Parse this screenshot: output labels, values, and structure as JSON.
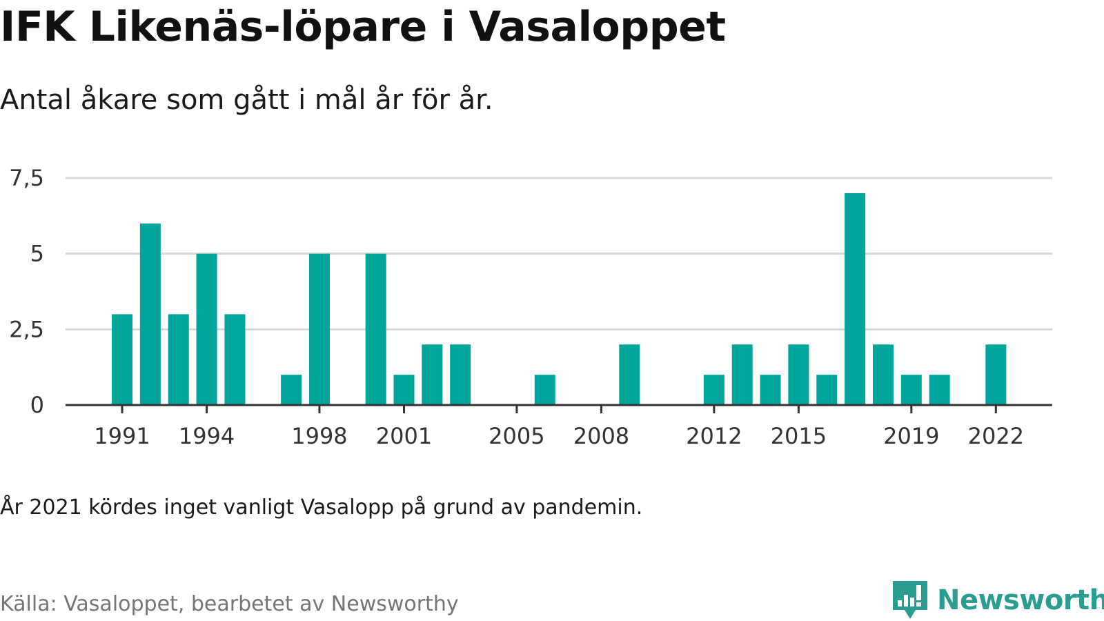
{
  "header": {
    "title": "IFK Likenäs-löpare i Vasaloppet",
    "subtitle": "Antal åkare som gått i mål år för år."
  },
  "footer": {
    "note": "År 2021 kördes inget vanligt Vasalopp på grund av pandemin.",
    "source": "Källa: Vasaloppet, bearbetet av Newsworthy",
    "brand": "Newsworthy",
    "brand_icon": "bar-chart-speech-bubble-icon"
  },
  "colors": {
    "bar": "#00a59b",
    "grid": "#d9d9d9",
    "axis": "#333333",
    "brand": "#2a9d90"
  },
  "chart_data": {
    "type": "bar",
    "x": [
      1991,
      1992,
      1993,
      1994,
      1995,
      1996,
      1997,
      1998,
      1999,
      2000,
      2001,
      2002,
      2003,
      2004,
      2005,
      2006,
      2007,
      2008,
      2009,
      2010,
      2011,
      2012,
      2013,
      2014,
      2015,
      2016,
      2017,
      2018,
      2019,
      2020,
      2021,
      2022
    ],
    "values": [
      3,
      6,
      3,
      5,
      3,
      0,
      1,
      5,
      0,
      5,
      1,
      2,
      2,
      0,
      0,
      1,
      0,
      0,
      2,
      0,
      0,
      1,
      2,
      1,
      2,
      1,
      7,
      2,
      1,
      1,
      0,
      2
    ],
    "xticks": [
      1991,
      1994,
      1998,
      2001,
      2005,
      2008,
      2012,
      2015,
      2019,
      2022
    ],
    "xtick_labels": [
      "1991",
      "1994",
      "1998",
      "2001",
      "2005",
      "2008",
      "2012",
      "2015",
      "2019",
      "2022"
    ],
    "yticks": [
      0,
      2.5,
      5,
      7.5
    ],
    "ytick_labels": [
      "0",
      "2,5",
      "5",
      "7,5"
    ],
    "ylim": [
      0,
      7.5
    ],
    "xlabel": "",
    "ylabel": "",
    "grid": true,
    "legend": "none"
  }
}
